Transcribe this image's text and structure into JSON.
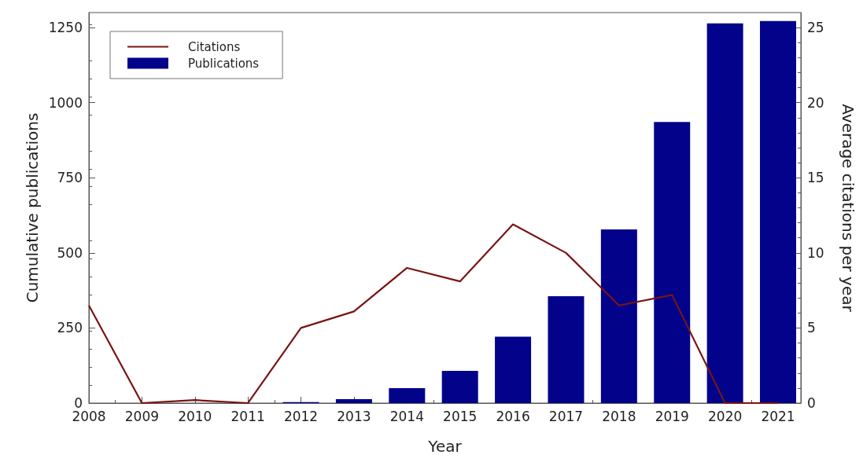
{
  "chart_data": {
    "type": "bar",
    "xlabel": "Year",
    "ylabel": "Cumulative publications",
    "y2label": "Average citations per year",
    "x": [
      2008,
      2009,
      2010,
      2011,
      2012,
      2013,
      2014,
      2015,
      2016,
      2017,
      2018,
      2019,
      2020,
      2021
    ],
    "xlim": [
      2008,
      2021.43
    ],
    "xticks": [
      2008,
      2009,
      2010,
      2011,
      2012,
      2013,
      2014,
      2015,
      2016,
      2017,
      2018,
      2019,
      2020,
      2021
    ],
    "ylim": [
      0,
      1300
    ],
    "yticks": [
      0,
      250,
      500,
      750,
      1000,
      1250
    ],
    "y2lim": [
      0,
      26
    ],
    "y2ticks": [
      0,
      5,
      10,
      15,
      20,
      25
    ],
    "series": [
      {
        "name": "Citations",
        "type": "line",
        "axis": "y2",
        "color": "#7a1414",
        "values": [
          6.5,
          0,
          0.2,
          0,
          5.0,
          6.1,
          9.0,
          8.1,
          11.9,
          10.0,
          6.5,
          7.2,
          0,
          0
        ]
      },
      {
        "name": "Publications",
        "color": "#03028a",
        "values": [
          0,
          0,
          0,
          0,
          3,
          13,
          50,
          107,
          221,
          356,
          578,
          936,
          1264,
          1272
        ]
      }
    ],
    "legend": "top left",
    "grid": false,
    "marker": "none",
    "line_style": "solid"
  }
}
